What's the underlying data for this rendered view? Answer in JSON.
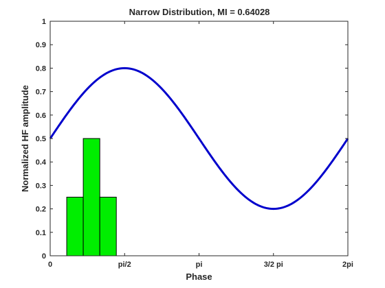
{
  "chart_data": {
    "type": "bar",
    "title": "Narrow Distribution, MI = 0.64028",
    "xlabel": "Phase",
    "ylabel": "Normalized HF amplitude",
    "xlim": [
      0,
      6.283185307
    ],
    "ylim": [
      0,
      1
    ],
    "x_ticks": [
      {
        "value": 0,
        "label": "0"
      },
      {
        "value": 1.570796327,
        "label": "pi/2"
      },
      {
        "value": 3.141592654,
        "label": "pi"
      },
      {
        "value": 4.71238898,
        "label": "3/2 pi"
      },
      {
        "value": 6.283185307,
        "label": "2pi"
      }
    ],
    "y_ticks": [
      {
        "value": 0,
        "label": "0"
      },
      {
        "value": 0.1,
        "label": "0.1"
      },
      {
        "value": 0.2,
        "label": "0.2"
      },
      {
        "value": 0.3,
        "label": "0.3"
      },
      {
        "value": 0.4,
        "label": "0.4"
      },
      {
        "value": 0.5,
        "label": "0.5"
      },
      {
        "value": 0.6,
        "label": "0.6"
      },
      {
        "value": 0.7,
        "label": "0.7"
      },
      {
        "value": 0.8,
        "label": "0.8"
      },
      {
        "value": 0.9,
        "label": "0.9"
      },
      {
        "value": 1,
        "label": "1"
      }
    ],
    "bars": [
      {
        "x_start": 0.349,
        "x_end": 0.698,
        "value": 0.25
      },
      {
        "x_start": 0.698,
        "x_end": 1.047,
        "value": 0.5
      },
      {
        "x_start": 1.047,
        "x_end": 1.396,
        "value": 0.25
      }
    ],
    "bar_color": "#00ee00",
    "bar_edge_color": "#000000",
    "curve": {
      "type": "line",
      "function": "0.5 + 0.3*sin(x)",
      "offset": 0.5,
      "amplitude": 0.3,
      "color": "#0000cc"
    },
    "grid": false
  }
}
